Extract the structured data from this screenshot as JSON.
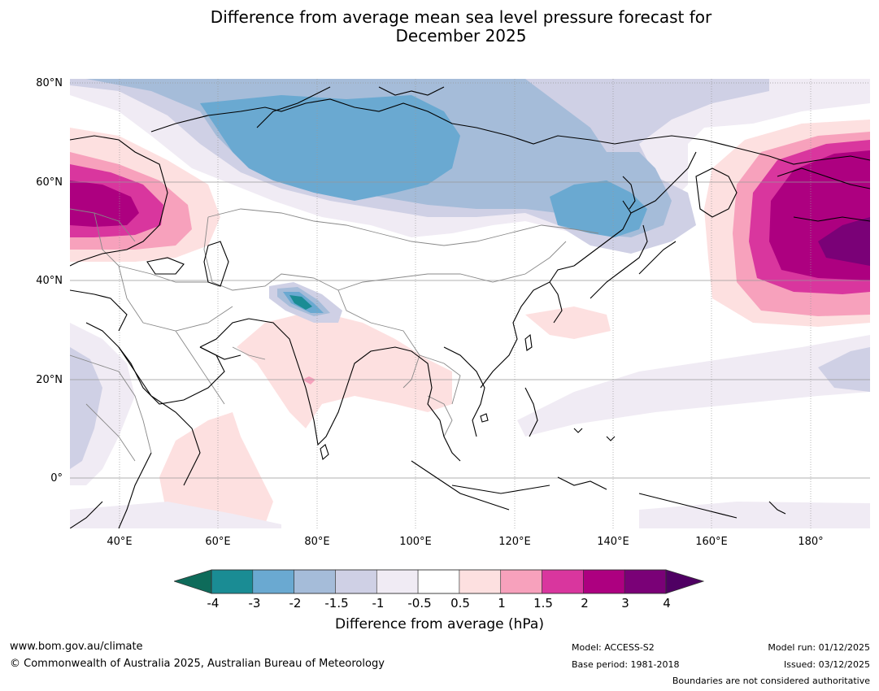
{
  "title": {
    "line1": "Difference from average mean sea level pressure forecast for",
    "line2": "December 2025"
  },
  "map": {
    "latitude_labels": [
      "80°N",
      "60°N",
      "40°N",
      "20°N",
      "0°"
    ],
    "longitude_labels": [
      "40°E",
      "60°E",
      "80°E",
      "100°E",
      "120°E",
      "140°E",
      "160°E",
      "180°"
    ],
    "extent": {
      "lon": [
        30,
        192
      ],
      "lat": [
        -10,
        81
      ]
    }
  },
  "colorbar": {
    "ticks": [
      "-4",
      "-3",
      "-2",
      "-1.5",
      "-1",
      "-0.5",
      "0.5",
      "1",
      "1.5",
      "2",
      "3",
      "4"
    ],
    "colors": [
      "#1a8c94",
      "#6aa9d1",
      "#a5bcd9",
      "#cfd0e5",
      "#f0ebf4",
      "#ffffff",
      "#fde0e0",
      "#f7a1bc",
      "#d9369e",
      "#ad0080",
      "#7a0177"
    ],
    "under_color": "#0e6b5a",
    "over_color": "#4f0063",
    "label": "Difference from average (hPa)"
  },
  "footer": {
    "website": "www.bom.gov.au/climate",
    "copyright": "© Commonwealth of Australia 2025, Australian Bureau of Meteorology",
    "model": "Model: ACCESS-S2",
    "base_period": "Base period: 1981-2018",
    "model_run": "Model run: 01/12/2025",
    "issued": "Issued: 03/12/2025",
    "disclaimer": "Boundaries are not considered authoritative"
  }
}
